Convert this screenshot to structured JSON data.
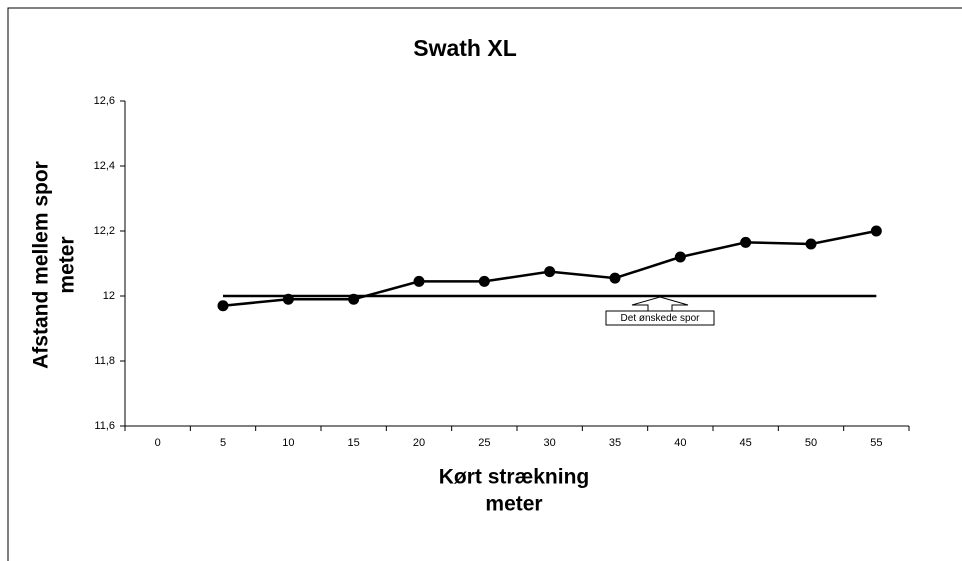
{
  "chart_data": {
    "type": "line",
    "title": "Swath XL",
    "x_label": [
      "Kørt strækning",
      "meter"
    ],
    "y_label": [
      "Afstand mellem spor",
      "meter"
    ],
    "categories": [
      "0",
      "5",
      "10",
      "15",
      "20",
      "25",
      "30",
      "35",
      "40",
      "45",
      "50",
      "55"
    ],
    "series": [
      {
        "color": "#000000",
        "markers": true,
        "values": [
          null,
          11.97,
          11.99,
          11.99,
          12.045,
          12.045,
          12.075,
          12.055,
          12.12,
          12.165,
          12.16,
          12.2
        ]
      },
      {
        "name": "Det ønskede spor",
        "color": "#000000",
        "markers": false,
        "values": [
          null,
          12,
          12,
          12,
          12,
          12,
          12,
          12,
          12,
          12,
          12,
          12
        ]
      }
    ],
    "ylim": [
      11.6,
      12.6
    ],
    "yticks": [
      {
        "value": 11.6,
        "label": "11,6"
      },
      {
        "value": 11.8,
        "label": "11,8"
      },
      12,
      {
        "value": 12.2,
        "label": "12,2"
      },
      {
        "value": 12.4,
        "label": "12,4"
      },
      {
        "value": 12.6,
        "label": "12,6"
      }
    ],
    "grid": false
  }
}
